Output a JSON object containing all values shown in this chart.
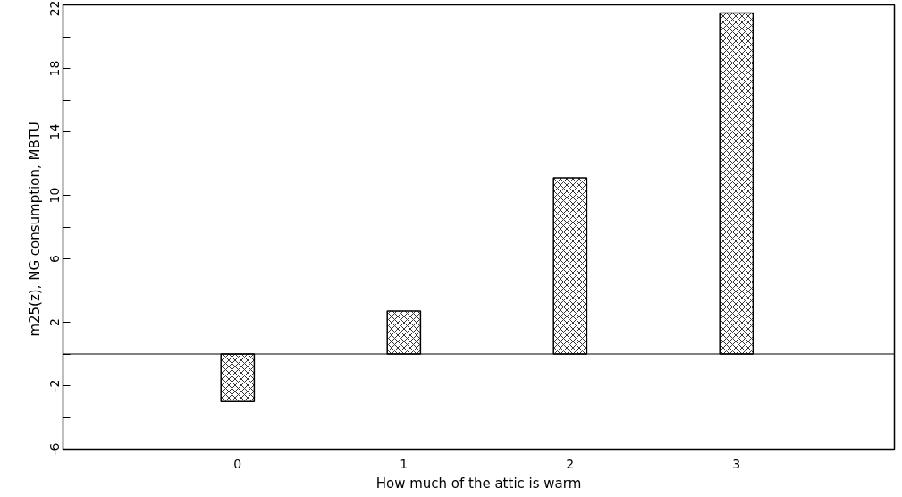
{
  "chart_data": {
    "type": "bar",
    "xlabel": "How much of the attic is warm",
    "ylabel": "m25(z),  NG consumption, MBTU",
    "categories": [
      "0",
      "1",
      "2",
      "3"
    ],
    "values": [
      -3.0,
      2.7,
      11.1,
      21.5
    ],
    "color": "#000000",
    "ylim": [
      -6,
      22
    ],
    "yticks": [
      -6,
      {
        "value": -4,
        "label": null
      },
      -2,
      {
        "value": 0,
        "label": null
      },
      2,
      {
        "value": 4,
        "label": null
      },
      6,
      {
        "value": 8,
        "label": null
      },
      10,
      {
        "value": 12,
        "label": null
      },
      14,
      {
        "value": 16,
        "label": null
      },
      18,
      {
        "value": 20,
        "label": null
      },
      22
    ],
    "ref_lines": [
      {
        "axis": "y",
        "value": 0,
        "label": null,
        "color": "#000000"
      }
    ],
    "grid": false
  }
}
